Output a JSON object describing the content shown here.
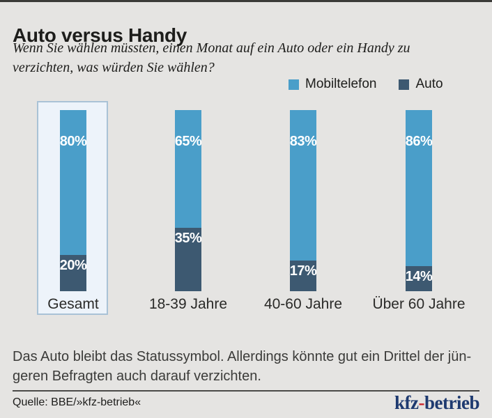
{
  "page": {
    "background": "#e5e4e2",
    "top_bar_color": "#3a3a38"
  },
  "header": {
    "title": "Auto versus Handy",
    "subtitle_lines": [
      "Wenn Sie wählen müssten, einen Monat auf ein Auto oder ein Handy zu",
      "verzichten, was würden Sie wählen?"
    ]
  },
  "chart_data": {
    "type": "bar",
    "subtype": "stacked-column-percent",
    "title": "Auto versus Handy",
    "categories": [
      "Gesamt",
      "18-39 Jahre",
      "40-60 Jahre",
      "Über 60 Jahre"
    ],
    "series": [
      {
        "name": "Mobiltelefon",
        "color": "#4a9ec9",
        "values": [
          80,
          65,
          83,
          86
        ],
        "labels": [
          "80%",
          "65%",
          "83%",
          "86%"
        ]
      },
      {
        "name": "Auto",
        "color": "#3d5971",
        "values": [
          20,
          35,
          17,
          14
        ],
        "labels": [
          "20%",
          "35%",
          "17%",
          "14%"
        ]
      }
    ],
    "unit": "%",
    "ylim": [
      0,
      100
    ],
    "grid": false,
    "legend_position": "top-right",
    "highlighted_category": "Gesamt",
    "highlight_box": {
      "fill": "#edf3fa",
      "border": "#a9c2d6"
    },
    "value_label_color": "#ffffff"
  },
  "footer": {
    "note_lines": [
      "Das Auto bleibt das Statussymbol. Allerdings könnte gut ein Drittel der jün-",
      "geren Befragten auch darauf verzichten."
    ],
    "source": "Quelle: BBE/»kfz-betrieb«",
    "logo": {
      "text_primary": "kfz",
      "separator": "-",
      "text_secondary": "betrieb",
      "primary_color": "#1e3a70",
      "separator_color": "#c9252c"
    }
  }
}
